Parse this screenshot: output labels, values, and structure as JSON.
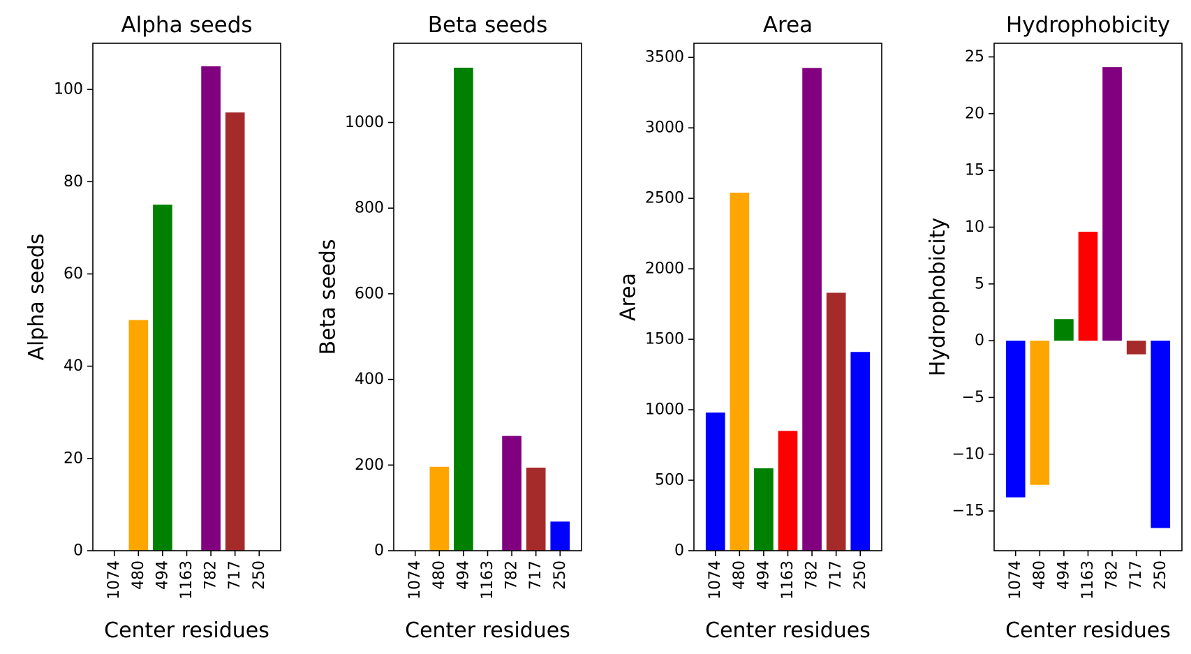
{
  "chart_data": [
    {
      "type": "bar",
      "title": "Alpha seeds",
      "xlabel": "Center residues",
      "ylabel": "Alpha seeds",
      "categories": [
        "1074",
        "480",
        "494",
        "1163",
        "782",
        "717",
        "250"
      ],
      "values": [
        0,
        50,
        75,
        0,
        105,
        95,
        0
      ],
      "colors": [
        "#0000ff",
        "#ffa500",
        "#008000",
        "#ff0000",
        "#800080",
        "#a52a2a",
        "#0000ff"
      ],
      "ylim": [
        0,
        110
      ],
      "yticks": [
        0,
        20,
        40,
        60,
        80,
        100
      ],
      "ytick_labels": [
        "0",
        "20",
        "40",
        "60",
        "80",
        "100"
      ],
      "grid": false
    },
    {
      "type": "bar",
      "title": "Beta seeds",
      "xlabel": "Center residues",
      "ylabel": "Beta seeds",
      "categories": [
        "1074",
        "480",
        "494",
        "1163",
        "782",
        "717",
        "250"
      ],
      "values": [
        0,
        196,
        1128,
        0,
        268,
        194,
        68
      ],
      "colors": [
        "#0000ff",
        "#ffa500",
        "#008000",
        "#ff0000",
        "#800080",
        "#a52a2a",
        "#0000ff"
      ],
      "ylim": [
        0,
        1185
      ],
      "yticks": [
        0,
        200,
        400,
        600,
        800,
        1000
      ],
      "ytick_labels": [
        "0",
        "200",
        "400",
        "600",
        "800",
        "1000"
      ],
      "grid": false
    },
    {
      "type": "bar",
      "title": "Area",
      "xlabel": "Center residues",
      "ylabel": "Area",
      "categories": [
        "1074",
        "480",
        "494",
        "1163",
        "782",
        "717",
        "250"
      ],
      "values": [
        980,
        2540,
        585,
        850,
        3425,
        1830,
        1410
      ],
      "colors": [
        "#0000ff",
        "#ffa500",
        "#008000",
        "#ff0000",
        "#800080",
        "#a52a2a",
        "#0000ff"
      ],
      "ylim": [
        0,
        3600
      ],
      "yticks": [
        0,
        500,
        1000,
        1500,
        2000,
        2500,
        3000,
        3500
      ],
      "ytick_labels": [
        "0",
        "500",
        "1000",
        "1500",
        "2000",
        "2500",
        "3000",
        "3500"
      ],
      "grid": false
    },
    {
      "type": "bar",
      "title": "Hydrophobicity",
      "xlabel": "Center residues",
      "ylabel": "Hydrophobicity",
      "categories": [
        "1074",
        "480",
        "494",
        "1163",
        "782",
        "717",
        "250"
      ],
      "values": [
        -13.8,
        -12.7,
        1.9,
        9.6,
        24.1,
        -1.2,
        -16.5
      ],
      "colors": [
        "#0000ff",
        "#ffa500",
        "#008000",
        "#ff0000",
        "#800080",
        "#a52a2a",
        "#0000ff"
      ],
      "ylim": [
        -18.5,
        26.2
      ],
      "yticks": [
        -15,
        -10,
        -5,
        0,
        5,
        10,
        15,
        20,
        25
      ],
      "ytick_labels": [
        "−15",
        "−10",
        "−5",
        "0",
        "5",
        "10",
        "15",
        "20",
        "25"
      ],
      "grid": false
    }
  ]
}
